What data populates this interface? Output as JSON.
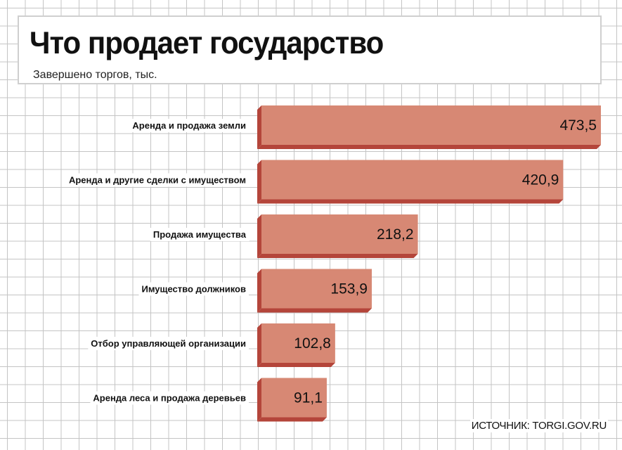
{
  "header": {
    "title": "Что продает государство",
    "subtitle": "Завершено торгов, тыс."
  },
  "source": "ИСТОЧНИК: TORGI.GOV.RU",
  "colors": {
    "bar_face": "#d78874",
    "bar_side": "#b4453a",
    "grid": "#c4c4c4"
  },
  "chart_data": {
    "type": "bar",
    "orientation": "horizontal",
    "title": "Что продает государство",
    "subtitle": "Завершено торгов, тыс.",
    "categories": [
      "Аренда и продажа земли",
      "Аренда и другие сделки с имуществом",
      "Продажа имущества",
      "Имущество должников",
      "Отбор управляющей организации",
      "Аренда леса и продажа деревьев"
    ],
    "values": [
      473.5,
      420.9,
      218.2,
      153.9,
      102.8,
      91.1
    ],
    "value_labels": [
      "473,5",
      "420,9",
      "218,2",
      "153,9",
      "102,8",
      "91,1"
    ],
    "xlim": [
      0,
      473.5
    ],
    "grid": true,
    "legend": "none"
  }
}
